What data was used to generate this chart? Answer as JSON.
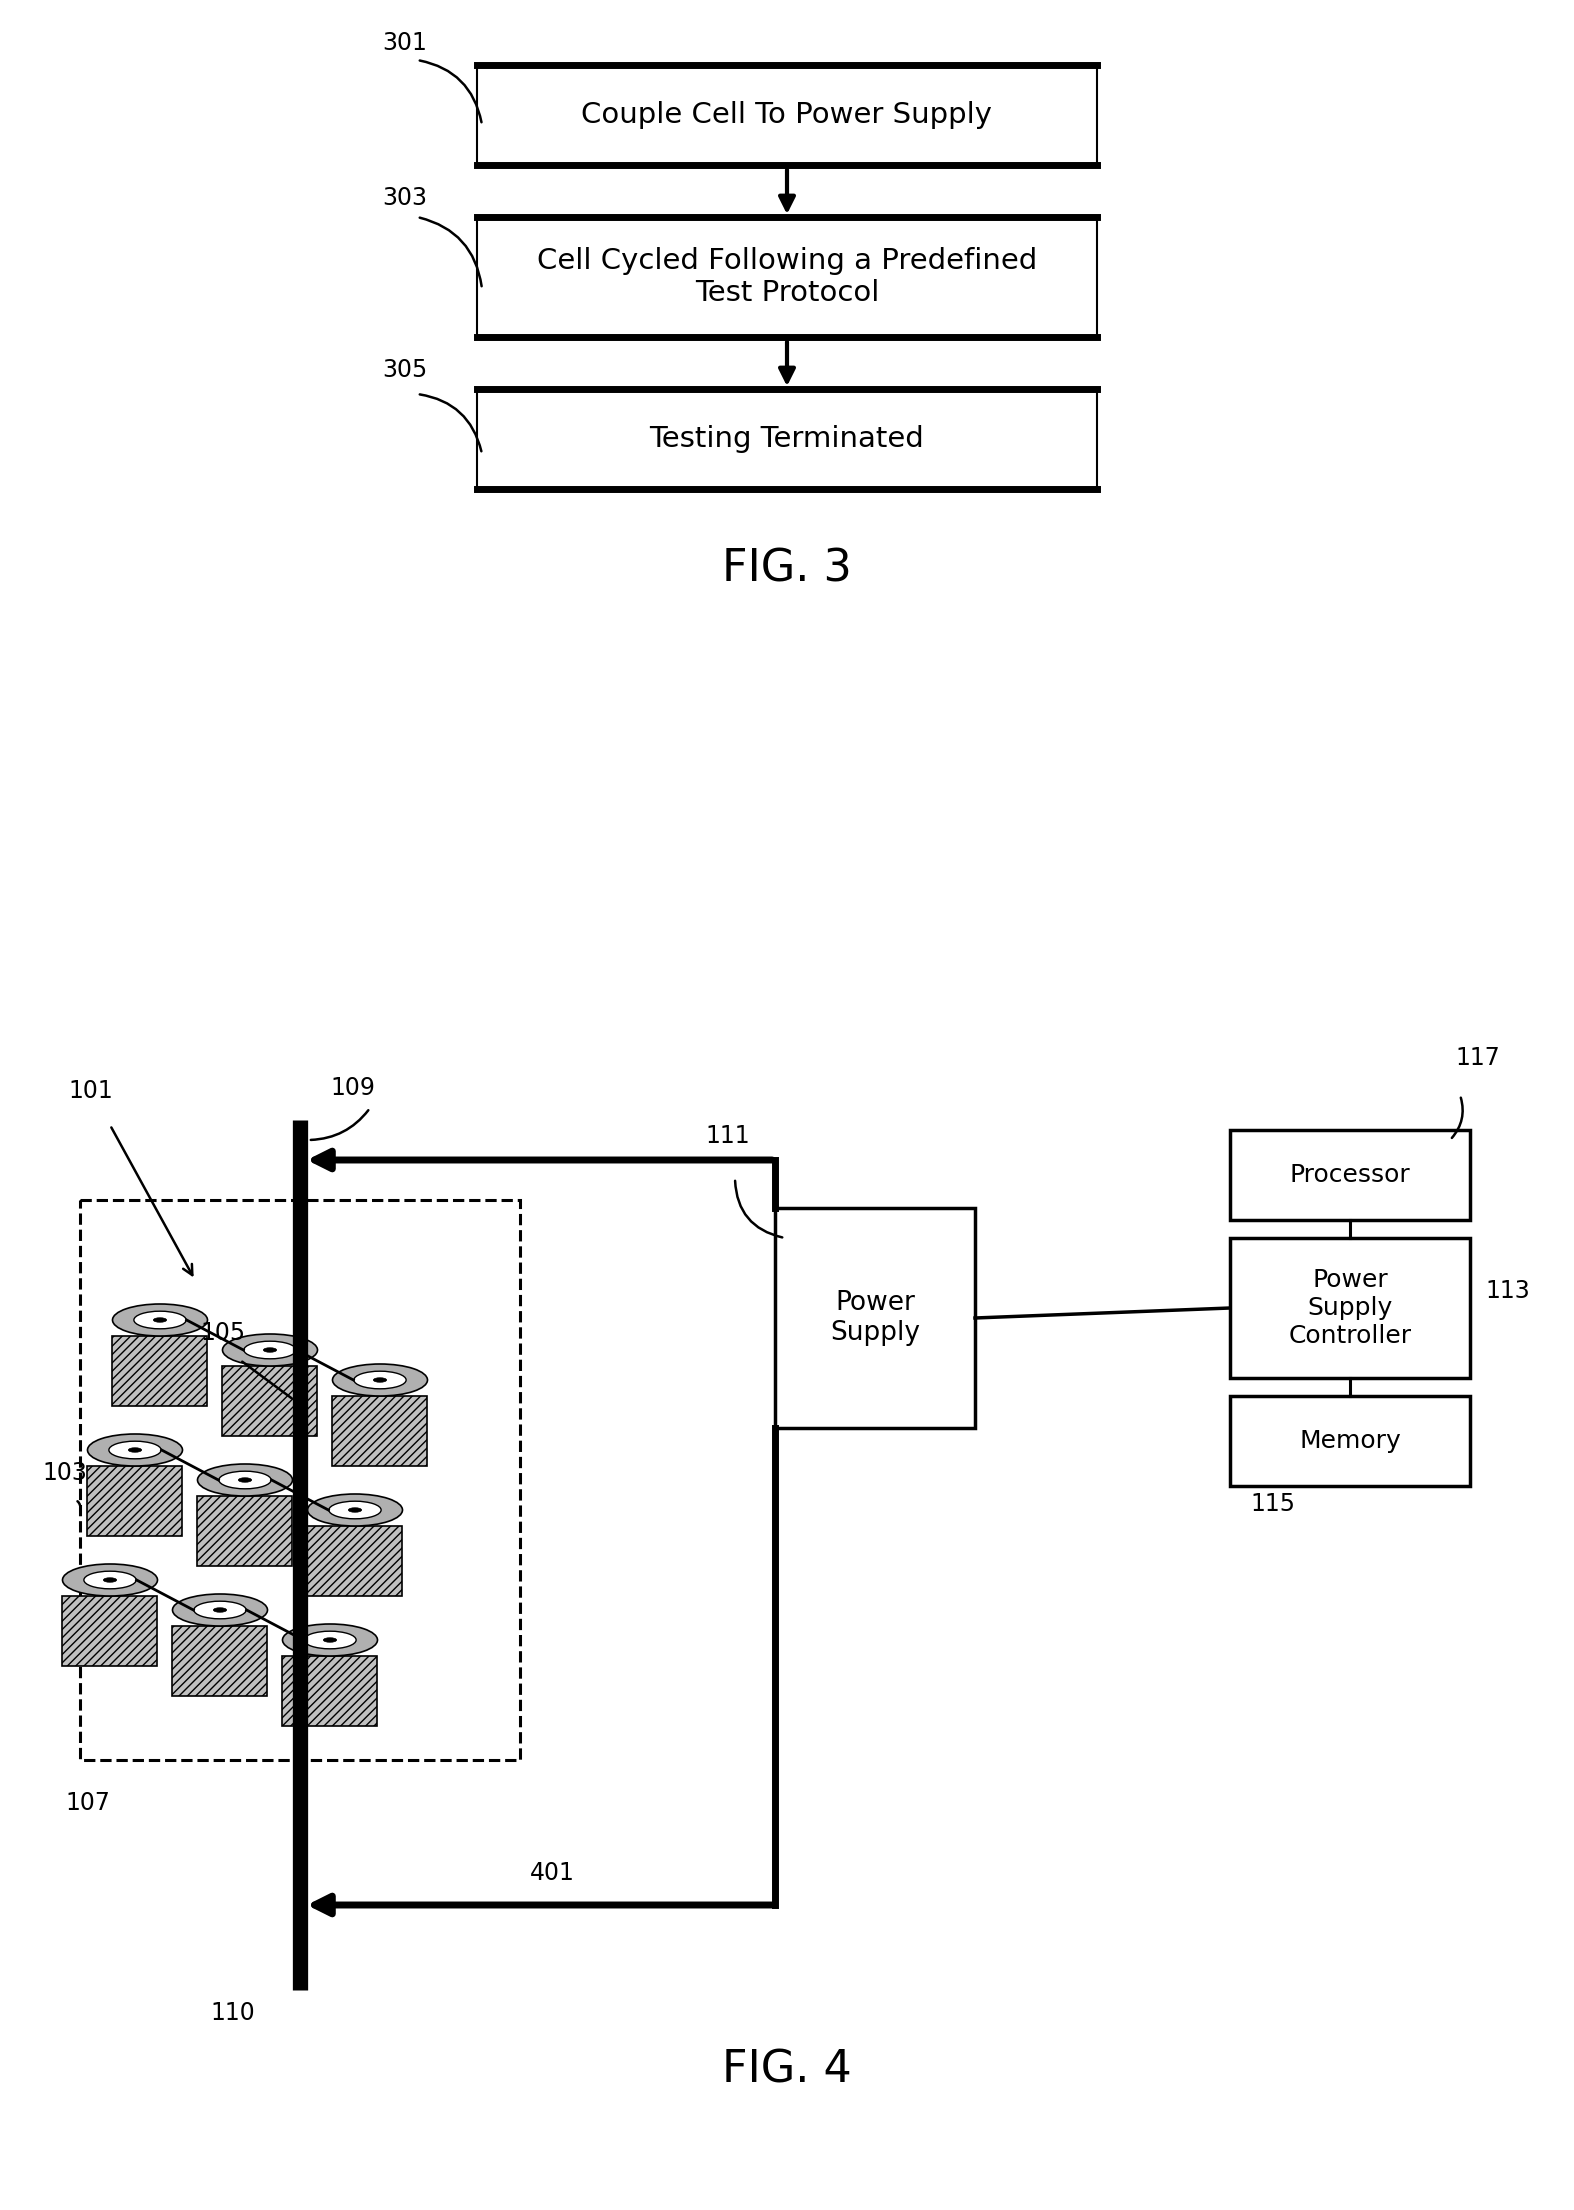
{
  "bg_color": "#ffffff",
  "fig3": {
    "title": "FIG. 3",
    "box1_label": "Couple Cell To Power Supply",
    "box2_label": "Cell Cycled Following a Predefined\nTest Protocol",
    "box3_label": "Testing Terminated",
    "ref1": "301",
    "ref2": "303",
    "ref3": "305"
  },
  "fig4": {
    "title": "FIG. 4",
    "ps_label": "Power\nSupply",
    "proc_label": "Processor",
    "psc_label": "Power\nSupply\nController",
    "mem_label": "Memory",
    "refs": {
      "101": "101",
      "103": "103",
      "105": "105",
      "107": "107",
      "109": "109",
      "110": "110",
      "111": "111",
      "113": "113",
      "115": "115",
      "117": "117",
      "401": "401"
    }
  }
}
